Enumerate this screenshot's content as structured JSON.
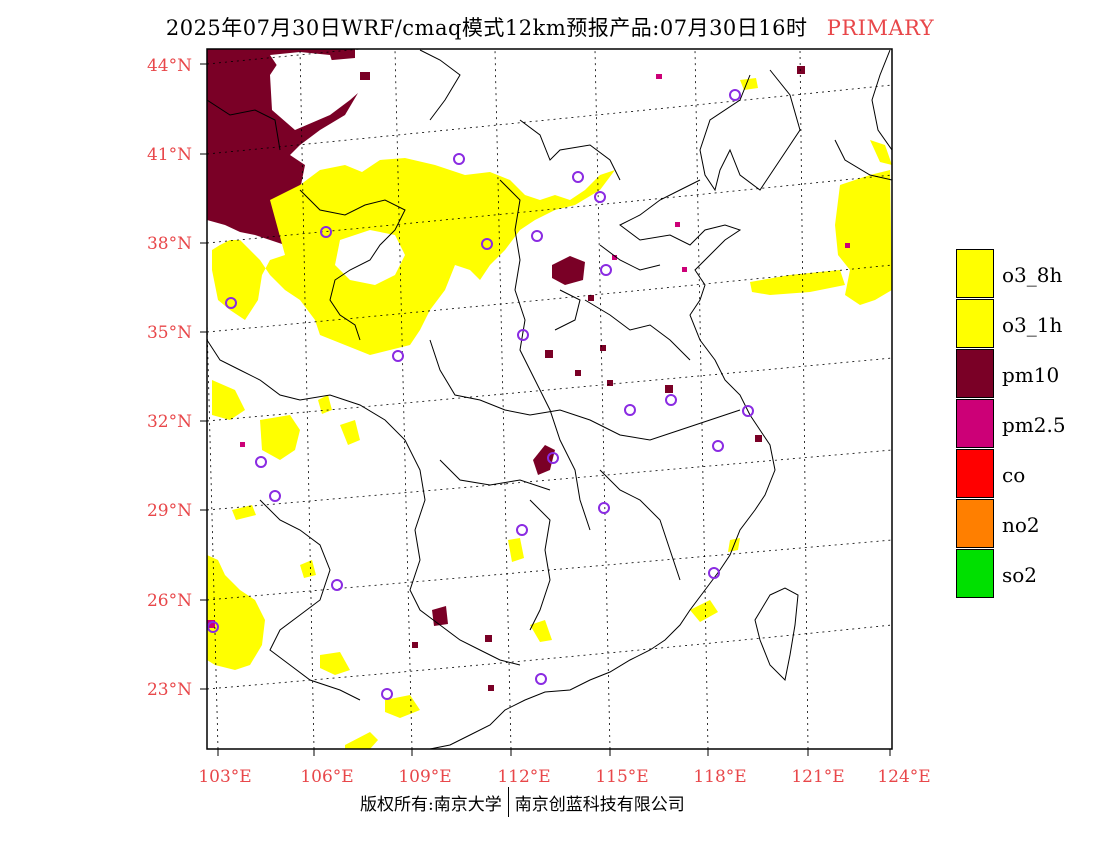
{
  "title": {
    "text": "2025年07月30日WRF/cmaq模式12km预报产品:07月30日16时",
    "tag": "PRIMARY",
    "tag_color": "#e8474a"
  },
  "map": {
    "lon_range": [
      102.7,
      124
    ],
    "lat_range": [
      21,
      44.5
    ],
    "lat_ticks": [
      "23°N",
      "26°N",
      "29°N",
      "32°N",
      "35°N",
      "38°N",
      "41°N",
      "44°N"
    ],
    "lon_ticks": [
      "103°E",
      "106°E",
      "109°E",
      "112°E",
      "115°E",
      "118°E",
      "121°E",
      "124°E"
    ],
    "graticule": "dotted",
    "station_marker": "purple-open-circle",
    "station_color": "#8a2be2"
  },
  "legend": {
    "items": [
      {
        "label": "o3_8h",
        "color": "#ffff00"
      },
      {
        "label": "o3_1h",
        "color": "#ffff00"
      },
      {
        "label": "pm10",
        "color": "#7a0026"
      },
      {
        "label": "pm2.5",
        "color": "#cc0077"
      },
      {
        "label": "co",
        "color": "#ff0000"
      },
      {
        "label": "no2",
        "color": "#ff7f00"
      },
      {
        "label": "so2",
        "color": "#00e000"
      }
    ]
  },
  "credit": {
    "left": "版权所有:南京大学",
    "right": "南京创蓝科技有限公司"
  }
}
